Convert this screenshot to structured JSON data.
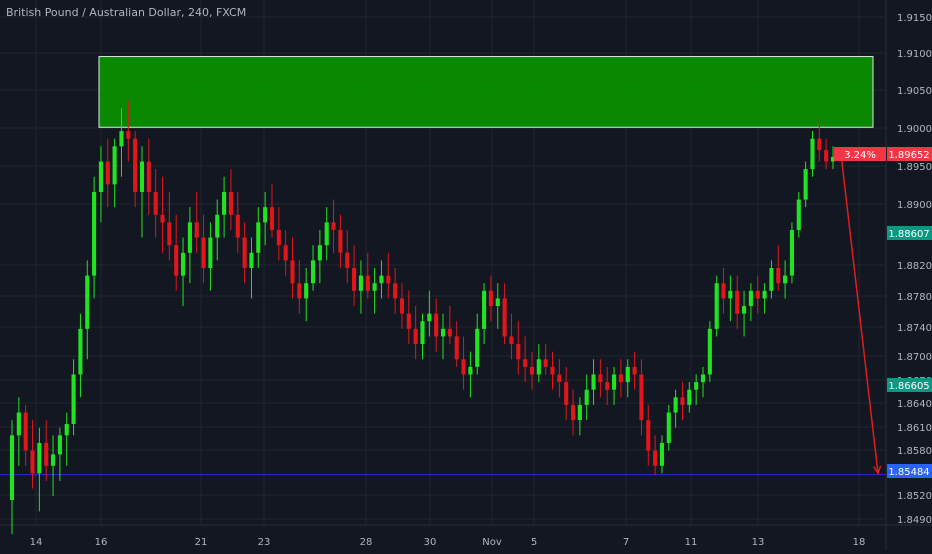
{
  "chart_data": {
    "type": "candlestick",
    "title": "British Pound / Australian Dollar, 240, FXCM",
    "instrument": "British Pound / Australian Dollar",
    "timeframe": "240",
    "source": "FXCM",
    "xlabel": "",
    "ylabel": "",
    "y_ticks": [
      "1.91500",
      "1.91000",
      "1.90500",
      "1.90000",
      "1.89500",
      "1.89000",
      "1.88200",
      "1.87800",
      "1.87400",
      "1.87000",
      "1.86700",
      "1.86400",
      "1.86100",
      "1.85800",
      "1.85200",
      "1.84900"
    ],
    "x_ticks": [
      "14",
      "16",
      "21",
      "23",
      "28",
      "30",
      "Nov",
      "5",
      "7",
      "11",
      "13",
      "18"
    ],
    "price_tags": [
      {
        "label": "3.24%",
        "value": "1.89652",
        "color": "#f23645"
      },
      {
        "label": "",
        "value": "1.88607",
        "color": "#089981"
      },
      {
        "label": "",
        "value": "1.86605",
        "color": "#089981"
      },
      {
        "label": "",
        "value": "1.85484",
        "color": "#2962ff"
      }
    ],
    "zone": {
      "from": 1.9005,
      "to": 1.9098,
      "color": "#089000"
    },
    "horizontal_line": {
      "value": 1.85484,
      "color": "#2727e6"
    },
    "arrow": {
      "from_value": 1.897,
      "to_value": 1.855,
      "color": "#e31b1b"
    },
    "colors": {
      "up": "#21e321",
      "down": "#e0161b",
      "background": "#131722",
      "grid": "#1f2430",
      "axis_text": "#b2b5be"
    },
    "candles": [
      [
        1.8515,
        1.862,
        1.847,
        1.86
      ],
      [
        1.86,
        1.865,
        1.856,
        1.863
      ],
      [
        1.863,
        1.864,
        1.856,
        1.858
      ],
      [
        1.858,
        1.862,
        1.853,
        1.855
      ],
      [
        1.855,
        1.861,
        1.85,
        1.859
      ],
      [
        1.859,
        1.862,
        1.854,
        1.856
      ],
      [
        1.856,
        1.86,
        1.852,
        1.8575
      ],
      [
        1.8575,
        1.861,
        1.854,
        1.86
      ],
      [
        1.86,
        1.863,
        1.856,
        1.8615
      ],
      [
        1.8615,
        1.87,
        1.86,
        1.868
      ],
      [
        1.868,
        1.876,
        1.865,
        1.874
      ],
      [
        1.874,
        1.883,
        1.87,
        1.881
      ],
      [
        1.881,
        1.894,
        1.878,
        1.892
      ],
      [
        1.892,
        1.898,
        1.888,
        1.896
      ],
      [
        1.896,
        1.899,
        1.89,
        1.893
      ],
      [
        1.893,
        1.899,
        1.89,
        1.898
      ],
      [
        1.898,
        1.903,
        1.894,
        1.9
      ],
      [
        1.9,
        1.904,
        1.896,
        1.899
      ],
      [
        1.899,
        1.9,
        1.89,
        1.892
      ],
      [
        1.892,
        1.898,
        1.886,
        1.896
      ],
      [
        1.896,
        1.899,
        1.889,
        1.892
      ],
      [
        1.892,
        1.895,
        1.886,
        1.889
      ],
      [
        1.889,
        1.894,
        1.884,
        1.888
      ],
      [
        1.888,
        1.892,
        1.883,
        1.885
      ],
      [
        1.885,
        1.889,
        1.879,
        1.881
      ],
      [
        1.881,
        1.886,
        1.877,
        1.884
      ],
      [
        1.884,
        1.89,
        1.88,
        1.888
      ],
      [
        1.888,
        1.892,
        1.884,
        1.886
      ],
      [
        1.886,
        1.889,
        1.88,
        1.882
      ],
      [
        1.882,
        1.888,
        1.879,
        1.886
      ],
      [
        1.886,
        1.891,
        1.883,
        1.889
      ],
      [
        1.889,
        1.894,
        1.886,
        1.892
      ],
      [
        1.892,
        1.895,
        1.887,
        1.889
      ],
      [
        1.889,
        1.892,
        1.884,
        1.886
      ],
      [
        1.886,
        1.888,
        1.88,
        1.882
      ],
      [
        1.882,
        1.886,
        1.878,
        1.884
      ],
      [
        1.884,
        1.89,
        1.882,
        1.888
      ],
      [
        1.888,
        1.892,
        1.885,
        1.89
      ],
      [
        1.89,
        1.893,
        1.886,
        1.887
      ],
      [
        1.887,
        1.89,
        1.883,
        1.885
      ],
      [
        1.885,
        1.887,
        1.881,
        1.883
      ],
      [
        1.883,
        1.886,
        1.878,
        1.88
      ],
      [
        1.88,
        1.883,
        1.876,
        1.878
      ],
      [
        1.878,
        1.882,
        1.875,
        1.88
      ],
      [
        1.88,
        1.885,
        1.879,
        1.883
      ],
      [
        1.883,
        1.887,
        1.88,
        1.885
      ],
      [
        1.885,
        1.89,
        1.883,
        1.888
      ],
      [
        1.888,
        1.891,
        1.884,
        1.887
      ],
      [
        1.887,
        1.889,
        1.882,
        1.884
      ],
      [
        1.884,
        1.887,
        1.88,
        1.882
      ],
      [
        1.882,
        1.885,
        1.877,
        1.879
      ],
      [
        1.879,
        1.883,
        1.876,
        1.881
      ],
      [
        1.881,
        1.884,
        1.878,
        1.879
      ],
      [
        1.879,
        1.882,
        1.876,
        1.88
      ],
      [
        1.88,
        1.883,
        1.878,
        1.881
      ],
      [
        1.881,
        1.884,
        1.878,
        1.88
      ],
      [
        1.88,
        1.882,
        1.876,
        1.878
      ],
      [
        1.878,
        1.88,
        1.874,
        1.876
      ],
      [
        1.876,
        1.879,
        1.872,
        1.874
      ],
      [
        1.874,
        1.877,
        1.87,
        1.872
      ],
      [
        1.872,
        1.876,
        1.87,
        1.875
      ],
      [
        1.875,
        1.879,
        1.873,
        1.876
      ],
      [
        1.876,
        1.878,
        1.871,
        1.873
      ],
      [
        1.873,
        1.876,
        1.87,
        1.874
      ],
      [
        1.874,
        1.877,
        1.872,
        1.873
      ],
      [
        1.873,
        1.875,
        1.869,
        1.87
      ],
      [
        1.87,
        1.873,
        1.866,
        1.868
      ],
      [
        1.868,
        1.871,
        1.865,
        1.869
      ],
      [
        1.869,
        1.876,
        1.868,
        1.874
      ],
      [
        1.874,
        1.88,
        1.872,
        1.879
      ],
      [
        1.879,
        1.881,
        1.875,
        1.877
      ],
      [
        1.877,
        1.88,
        1.874,
        1.878
      ],
      [
        1.878,
        1.88,
        1.872,
        1.873
      ],
      [
        1.873,
        1.876,
        1.87,
        1.872
      ],
      [
        1.872,
        1.875,
        1.868,
        1.87
      ],
      [
        1.87,
        1.873,
        1.867,
        1.869
      ],
      [
        1.869,
        1.871,
        1.866,
        1.868
      ],
      [
        1.868,
        1.872,
        1.867,
        1.87
      ],
      [
        1.87,
        1.872,
        1.868,
        1.869
      ],
      [
        1.869,
        1.871,
        1.866,
        1.868
      ],
      [
        1.868,
        1.87,
        1.865,
        1.867
      ],
      [
        1.867,
        1.869,
        1.862,
        1.864
      ],
      [
        1.864,
        1.866,
        1.86,
        1.862
      ],
      [
        1.862,
        1.865,
        1.86,
        1.864
      ],
      [
        1.864,
        1.868,
        1.862,
        1.866
      ],
      [
        1.866,
        1.87,
        1.864,
        1.868
      ],
      [
        1.868,
        1.87,
        1.865,
        1.867
      ],
      [
        1.867,
        1.869,
        1.864,
        1.866
      ],
      [
        1.866,
        1.869,
        1.864,
        1.868
      ],
      [
        1.868,
        1.87,
        1.865,
        1.867
      ],
      [
        1.867,
        1.87,
        1.865,
        1.869
      ],
      [
        1.869,
        1.871,
        1.866,
        1.868
      ],
      [
        1.868,
        1.87,
        1.86,
        1.862
      ],
      [
        1.862,
        1.864,
        1.856,
        1.858
      ],
      [
        1.858,
        1.86,
        1.8548,
        1.856
      ],
      [
        1.856,
        1.86,
        1.855,
        1.859
      ],
      [
        1.859,
        1.864,
        1.858,
        1.863
      ],
      [
        1.863,
        1.866,
        1.861,
        1.865
      ],
      [
        1.865,
        1.867,
        1.862,
        1.864
      ],
      [
        1.864,
        1.867,
        1.863,
        1.866
      ],
      [
        1.866,
        1.868,
        1.864,
        1.867
      ],
      [
        1.867,
        1.869,
        1.865,
        1.868
      ],
      [
        1.868,
        1.875,
        1.867,
        1.874
      ],
      [
        1.874,
        1.881,
        1.873,
        1.88
      ],
      [
        1.88,
        1.882,
        1.876,
        1.878
      ],
      [
        1.878,
        1.881,
        1.875,
        1.879
      ],
      [
        1.879,
        1.881,
        1.874,
        1.876
      ],
      [
        1.876,
        1.879,
        1.873,
        1.877
      ],
      [
        1.877,
        1.88,
        1.875,
        1.879
      ],
      [
        1.879,
        1.881,
        1.876,
        1.878
      ],
      [
        1.878,
        1.88,
        1.876,
        1.879
      ],
      [
        1.879,
        1.883,
        1.878,
        1.882
      ],
      [
        1.882,
        1.885,
        1.879,
        1.88
      ],
      [
        1.88,
        1.883,
        1.878,
        1.881
      ],
      [
        1.881,
        1.888,
        1.88,
        1.887
      ],
      [
        1.887,
        1.892,
        1.886,
        1.891
      ],
      [
        1.891,
        1.896,
        1.89,
        1.895
      ],
      [
        1.895,
        1.9,
        1.894,
        1.899
      ],
      [
        1.899,
        1.902,
        1.896,
        1.8975
      ],
      [
        1.8975,
        1.899,
        1.895,
        1.896
      ],
      [
        1.896,
        1.898,
        1.895,
        1.8966
      ]
    ]
  }
}
